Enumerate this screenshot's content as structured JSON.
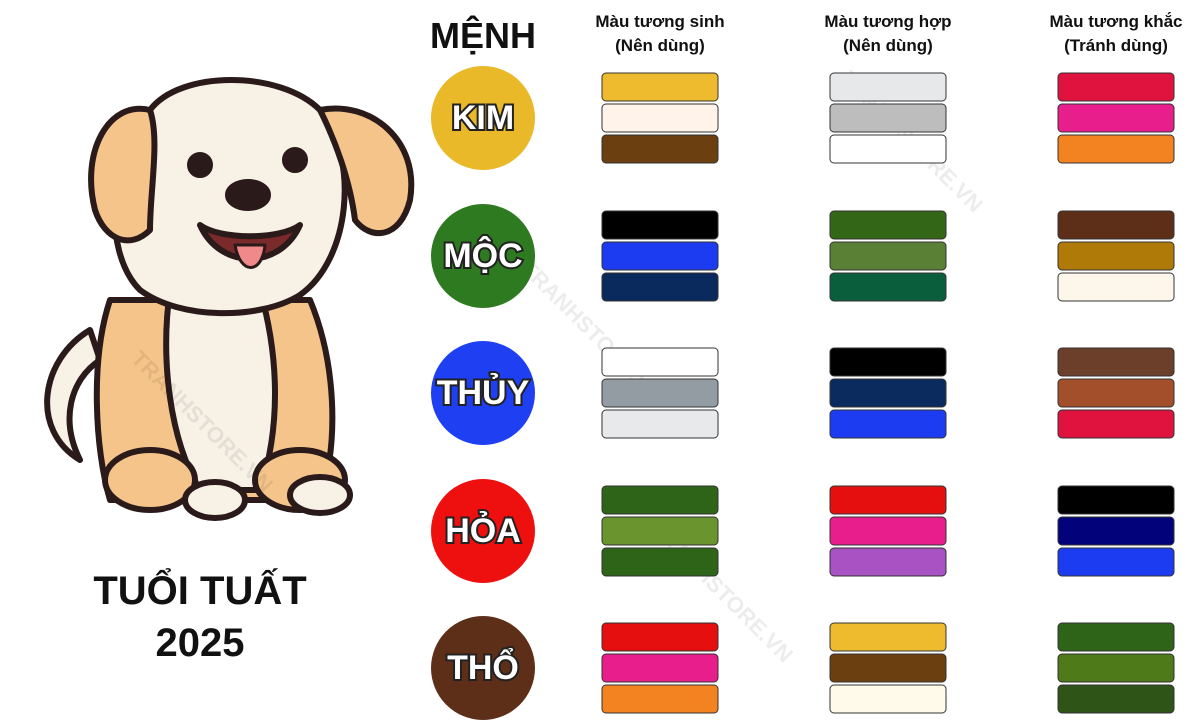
{
  "title": [
    "TUỔI TUẤT",
    "2025"
  ],
  "watermark": "TRANHSTORE.VN",
  "header": {
    "element": "MỆNH",
    "columns": [
      [
        "Màu tương sinh",
        "(Nên dùng)"
      ],
      [
        "Màu tương hợp",
        "(Nên dùng)"
      ],
      [
        "Màu tương khắc",
        "(Tránh dùng)"
      ]
    ]
  },
  "rows": [
    {
      "label": "KIM",
      "color": "#e9b92a",
      "swatches": [
        [
          "#eebb2e",
          "#fff3ea",
          "#6b3f10"
        ],
        [
          "#e7e8ea",
          "#bdbdbd",
          "#ffffff"
        ],
        [
          "#e0133f",
          "#e81e8c",
          "#f38320"
        ]
      ]
    },
    {
      "label": "MỘC",
      "color": "#2e7a21",
      "swatches": [
        [
          "#000000",
          "#1b3cf0",
          "#0a2a5e"
        ],
        [
          "#346617",
          "#5a8035",
          "#0b5e3c"
        ],
        [
          "#5e2f18",
          "#b07a09",
          "#fdf6ea"
        ]
      ]
    },
    {
      "label": "THỦY",
      "color": "#1e3ff2",
      "swatches": [
        [
          "#ffffff",
          "#939ba3",
          "#e8e9eb"
        ],
        [
          "#000000",
          "#0b2b5e",
          "#1b3cf0"
        ],
        [
          "#6b3f2a",
          "#a44f2b",
          "#e0133f"
        ]
      ]
    },
    {
      "label": "HỎA",
      "color": "#ee0f0f",
      "swatches": [
        [
          "#2e6418",
          "#6a952e",
          "#2e6418"
        ],
        [
          "#e60f0f",
          "#e81e8c",
          "#a952c3"
        ],
        [
          "#000000",
          "#02037a",
          "#1b3cf0"
        ]
      ]
    },
    {
      "label": "THỔ",
      "color": "#5e2f18",
      "swatches": [
        [
          "#e60f0f",
          "#e81e8c",
          "#f38320"
        ],
        [
          "#eebb2e",
          "#6b3f10",
          "#fffaea"
        ],
        [
          "#2e6418",
          "#4e7a1a",
          "#2e5517"
        ]
      ]
    }
  ]
}
